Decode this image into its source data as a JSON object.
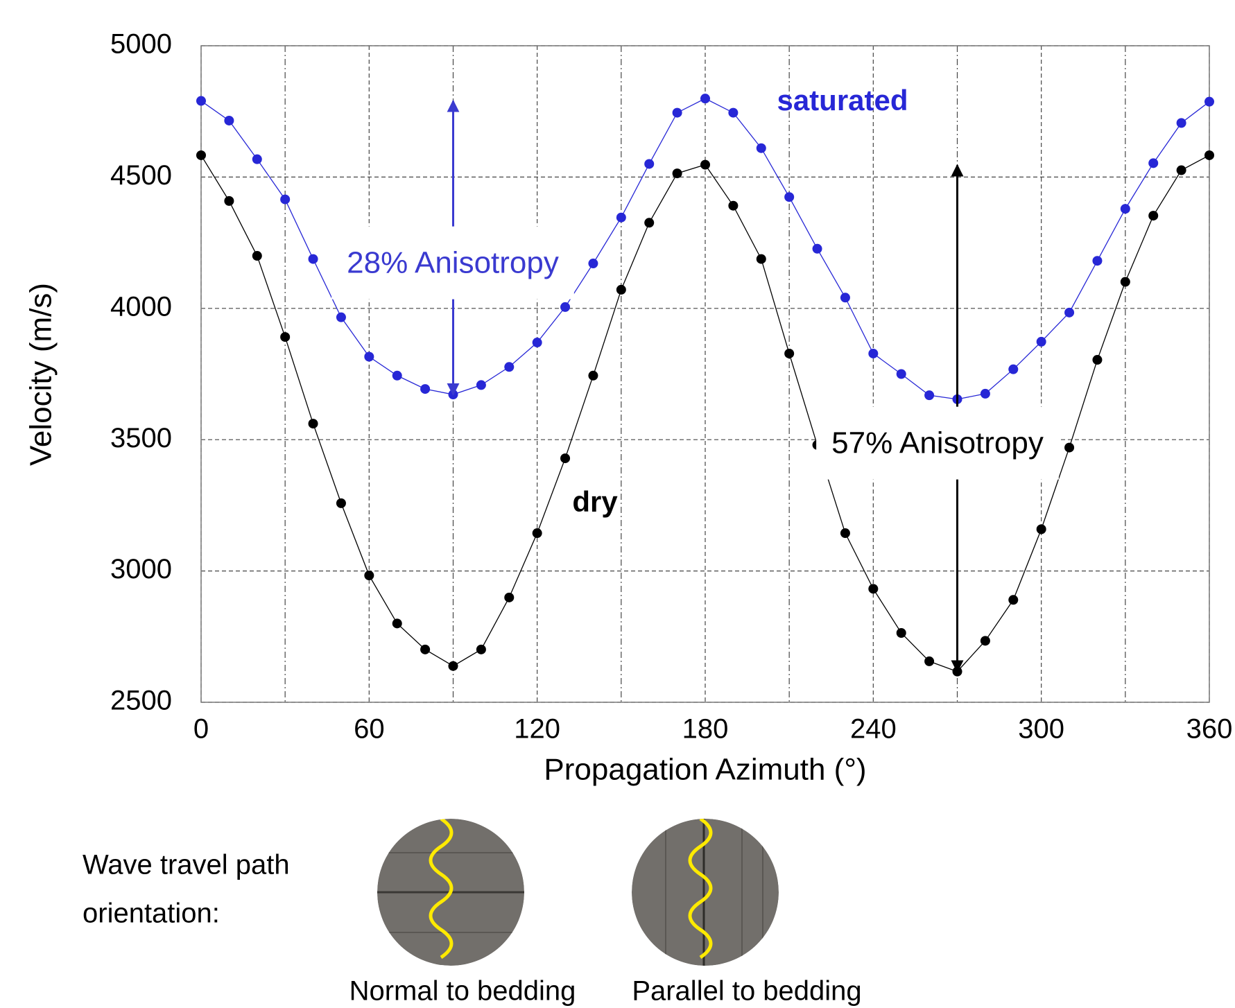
{
  "chart_data": {
    "type": "line",
    "xlabel": "Propagation Azimuth (°)",
    "ylabel": "Velocity (m/s)",
    "x": [
      0,
      10,
      20,
      30,
      40,
      50,
      60,
      70,
      80,
      90,
      100,
      110,
      120,
      130,
      140,
      150,
      160,
      170,
      180,
      190,
      200,
      210,
      220,
      230,
      240,
      250,
      260,
      270,
      280,
      290,
      300,
      310,
      320,
      330,
      340,
      350,
      360
    ],
    "series": [
      {
        "name": "saturated",
        "color": "#2727d6",
        "values": [
          4790,
          4715,
          4568,
          4415,
          4188,
          3966,
          3816,
          3744,
          3693,
          3672,
          3708,
          3777,
          3870,
          4005,
          4171,
          4346,
          4550,
          4745,
          4799,
          4745,
          4610,
          4424,
          4227,
          4041,
          3828,
          3750,
          3669,
          3654,
          3675,
          3768,
          3873,
          3984,
          4181,
          4379,
          4553,
          4706,
          4787
        ]
      },
      {
        "name": "dry",
        "color": "#000000",
        "values": [
          4583,
          4409,
          4200,
          3891,
          3561,
          3258,
          2983,
          2800,
          2701,
          2638,
          2701,
          2899,
          3144,
          3429,
          3744,
          4071,
          4326,
          4514,
          4547,
          4391,
          4188,
          3828,
          3480,
          3144,
          2932,
          2764,
          2656,
          2617,
          2734,
          2890,
          3159,
          3470,
          3804,
          4101,
          4353,
          4526,
          4583
        ]
      }
    ],
    "xlim": [
      0,
      360
    ],
    "ylim": [
      2500,
      5000
    ],
    "xticks": [
      0,
      60,
      120,
      180,
      240,
      300,
      360
    ],
    "xgrid_minor": [
      30,
      90,
      150,
      210,
      270,
      330
    ],
    "yticks": [
      2500,
      3000,
      3500,
      4000,
      4500,
      5000
    ],
    "grid": true,
    "annotations": [
      {
        "text": "28% Anisotropy",
        "x": 90,
        "from": 4790,
        "to": 3672,
        "color": "#3a3ad0"
      },
      {
        "text": "57% Anisotropy",
        "x": 270,
        "from": 4545,
        "to": 2617,
        "color": "#000000"
      }
    ]
  },
  "legend_panel": {
    "caption_lines": [
      "Wave travel path",
      "orientation:"
    ],
    "icons": [
      {
        "label": "Normal to bedding"
      },
      {
        "label": "Parallel to bedding"
      }
    ]
  }
}
